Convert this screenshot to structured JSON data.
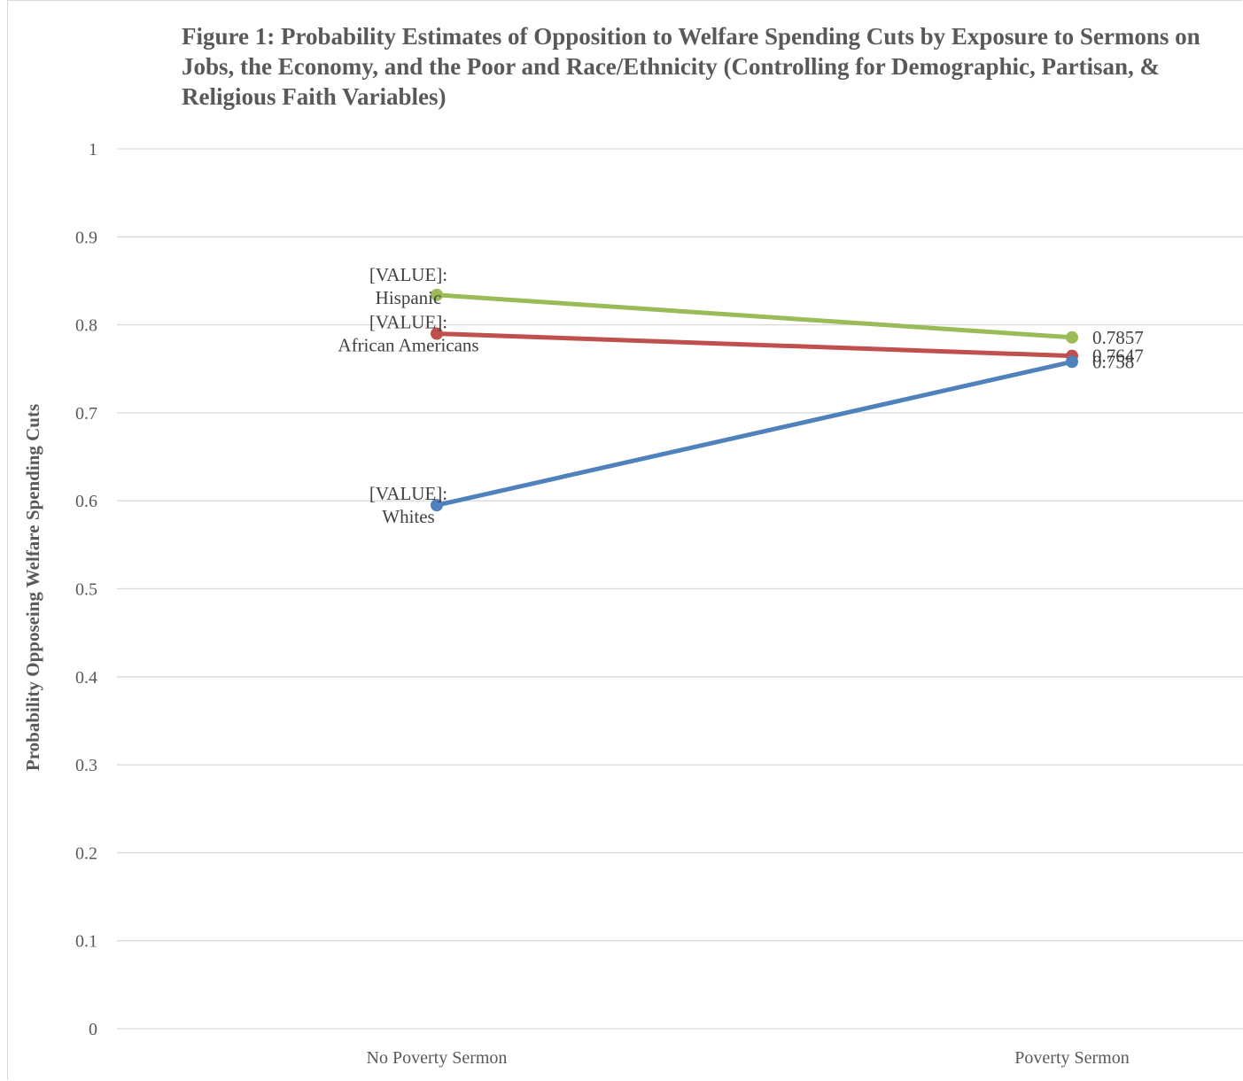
{
  "chart_data": {
    "type": "line",
    "title": "Figure 1: Probability Estimates of Opposition to Welfare Spending Cuts by Exposure to Sermons on Jobs, the Economy, and the Poor and Race/Ethnicity (Controlling for Demographic, Partisan, & Religious Faith Variables)",
    "xlabel": "",
    "ylabel": "Probability Opposeing Welfare Spending Cuts",
    "categories": [
      "No Poverty Sermon",
      "Poverty Sermon"
    ],
    "ylim": [
      0,
      1
    ],
    "yticks": [
      "0",
      "0.1",
      "0.2",
      "0.3",
      "0.4",
      "0.5",
      "0.6",
      "0.7",
      "0.8",
      "0.9",
      "1"
    ],
    "grid": true,
    "series": [
      {
        "name": "Hispanic",
        "color": "#9bbb59",
        "values": [
          0.834,
          0.7857
        ],
        "labels": [
          "[VALUE]:\nHispanic",
          "0.7857"
        ]
      },
      {
        "name": "African Americans",
        "color": "#c0504d",
        "values": [
          0.79,
          0.7647
        ],
        "labels": [
          "[VALUE]:\nAfrican Americans",
          "0.7647"
        ]
      },
      {
        "name": "Whites",
        "color": "#4f81bd",
        "values": [
          0.595,
          0.758
        ],
        "labels": [
          "[VALUE]:\nWhites",
          "0.758"
        ]
      }
    ]
  }
}
